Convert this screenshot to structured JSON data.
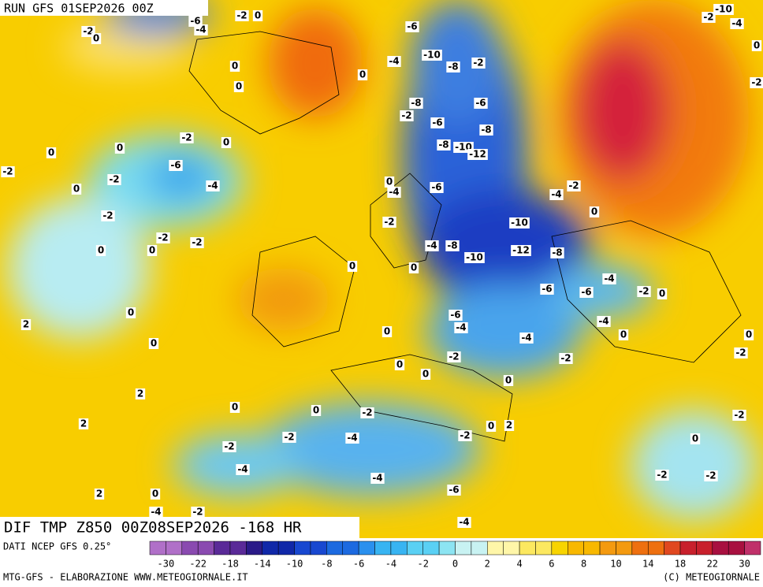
{
  "header": {
    "run": "RUN GFS 01SEP2026 00Z"
  },
  "map": {
    "title": "DIF TMP Z850 00Z08SEP2026 -168 HR",
    "contour_labels": [
      -2,
      0,
      -2,
      0,
      -6,
      -4,
      -6,
      -10,
      -8,
      -2,
      -4,
      0,
      0,
      0,
      -8,
      -6,
      -2,
      -6,
      -8,
      -8,
      -10,
      -12,
      0,
      -2,
      0,
      0,
      -6,
      -2,
      -2,
      -4,
      0,
      0,
      -4,
      -6,
      -4,
      -2,
      0,
      -2,
      -2,
      -10,
      -2,
      -2,
      0,
      0,
      -4,
      -8,
      -10,
      -12,
      -8,
      0,
      0,
      -4,
      -6,
      -6,
      -2,
      0,
      0,
      -6,
      -4,
      -4,
      2,
      0,
      0,
      -4,
      0,
      0,
      -2,
      -2,
      -2,
      0,
      0,
      0,
      2,
      0,
      0,
      -2,
      -2,
      2,
      0,
      2,
      -2,
      -4,
      -2,
      0,
      -2,
      -4,
      -4,
      -2,
      -2,
      -6,
      2,
      0,
      -4,
      -4,
      -2,
      -10,
      -2,
      -4,
      0,
      -2
    ]
  },
  "footer": {
    "source": "DATI NCEP GFS 0.25°",
    "credit": "MTG-GFS - ELABORAZIONE WWW.METEOGIORNALE.IT",
    "copyright": "(C) METEOGIORNALE",
    "colorbar_ticks": [
      -30,
      -22,
      -18,
      -14,
      -10,
      -8,
      -6,
      -4,
      -2,
      0,
      2,
      4,
      6,
      8,
      10,
      14,
      18,
      22,
      30
    ]
  }
}
